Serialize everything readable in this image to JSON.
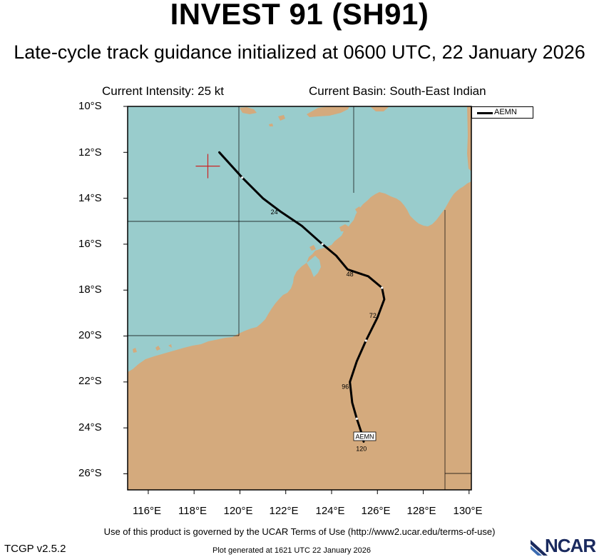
{
  "header": {
    "title": "INVEST 91 (SH91)",
    "subtitle": "Late-cycle track guidance initialized at 0600 UTC, 22 January 2026"
  },
  "info": {
    "intensity": "Current Intensity: 25 kt",
    "basin": "Current Basin: South-East Indian"
  },
  "axes": {
    "lat_labels": [
      "10°S",
      "12°S",
      "14°S",
      "16°S",
      "18°S",
      "20°S",
      "22°S",
      "24°S",
      "26°S"
    ],
    "lon_labels": [
      "116°E",
      "118°E",
      "120°E",
      "122°E",
      "124°E",
      "126°E",
      "128°E",
      "130°E"
    ]
  },
  "legend": {
    "entries": [
      {
        "name": "AEMN",
        "color": "#000000"
      }
    ]
  },
  "map": {
    "ocean_color": "#99cccc",
    "land_color": "#d4aa7d",
    "extent": {
      "lon": [
        115.1,
        130.1
      ],
      "lat": [
        -26.7,
        -10.0
      ]
    },
    "current_position": {
      "lat": -12.6,
      "lon": 118.6,
      "marker_color": "#cc2222"
    }
  },
  "track": {
    "model": "AEMN",
    "points": [
      {
        "lat": -12.0,
        "lon": 119.1
      },
      {
        "lat": -13.1,
        "lon": 120.1
      },
      {
        "lat": -14.0,
        "lon": 121.0
      },
      {
        "lat": -14.6,
        "lon": 121.8
      },
      {
        "lat": -15.2,
        "lon": 122.7
      },
      {
        "lat": -16.0,
        "lon": 123.6
      },
      {
        "lat": -16.5,
        "lon": 124.2
      },
      {
        "lat": -17.1,
        "lon": 124.7
      },
      {
        "lat": -17.4,
        "lon": 125.6
      },
      {
        "lat": -17.9,
        "lon": 126.2
      },
      {
        "lat": -18.4,
        "lon": 126.3
      },
      {
        "lat": -19.2,
        "lon": 126.0
      },
      {
        "lat": -20.2,
        "lon": 125.5
      },
      {
        "lat": -21.1,
        "lon": 125.1
      },
      {
        "lat": -22.0,
        "lon": 124.8
      },
      {
        "lat": -22.9,
        "lon": 124.9
      },
      {
        "lat": -23.6,
        "lon": 125.1
      },
      {
        "lat": -24.2,
        "lon": 125.3
      },
      {
        "lat": -24.6,
        "lon": 125.4
      }
    ],
    "tau_labels": [
      {
        "text": "24",
        "lat": -14.7,
        "lon": 121.5
      },
      {
        "text": "48",
        "lat": -17.4,
        "lon": 124.8
      },
      {
        "text": "72",
        "lat": -19.2,
        "lon": 125.8
      },
      {
        "text": "96",
        "lat": -22.3,
        "lon": 124.6
      },
      {
        "text": "120",
        "lat": -25.0,
        "lon": 125.3
      }
    ],
    "end_label": "AEMN"
  },
  "footer": {
    "terms": "Use of this product is governed by the UCAR Terms of Use (http://www2.ucar.edu/terms-of-use)",
    "version": "TCGP v2.5.2",
    "generated": "Plot generated at 1621 UTC   22 January 2026",
    "logo_text": "NCAR"
  }
}
